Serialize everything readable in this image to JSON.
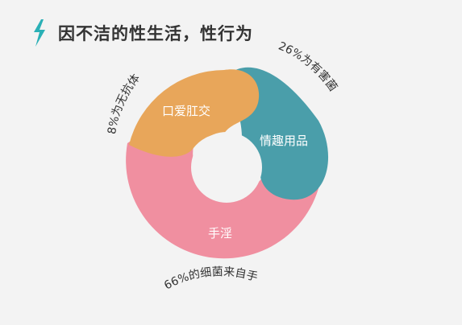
{
  "header": {
    "title": "因不洁的性生活，性行为",
    "icon": "lightning-bolt-icon"
  },
  "colors": {
    "accent": "#2ab0b6",
    "background": "#f3f3f3",
    "title_text": "#333333",
    "segment_text": "#ffffff",
    "annotation_text": "#333333"
  },
  "chart_data": {
    "type": "pie",
    "style": "donut",
    "title": "因不洁的性生活，性行为",
    "slices": [
      {
        "name": "口爱肛交",
        "color": "#e8a65a",
        "annotation": "8%为无抗体"
      },
      {
        "name": "情趣用品",
        "color": "#4a9eaa",
        "annotation": "26%为有害菌"
      },
      {
        "name": "手淫",
        "color": "#f08fa0",
        "annotation": "66%的细菌来自手"
      }
    ]
  }
}
